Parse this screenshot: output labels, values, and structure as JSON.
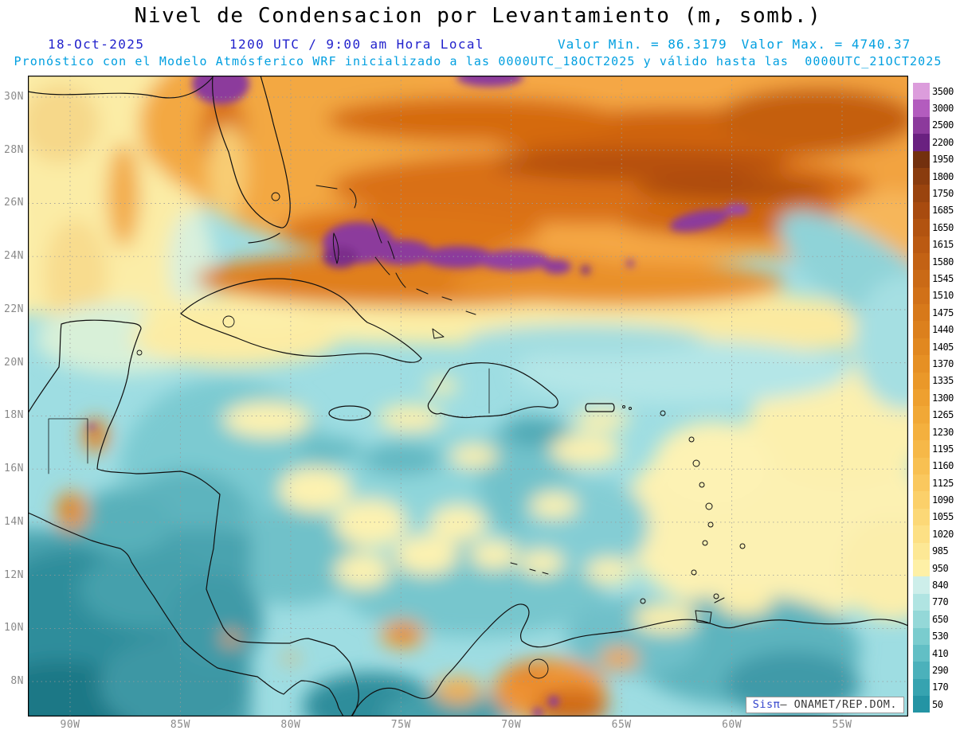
{
  "header": {
    "title": "Nivel de Condensacion por Levantamiento (m, somb.)",
    "date": "18-Oct-2025",
    "time": "1200 UTC / 9:00 am Hora Local",
    "value_min_text": "Valor Min. = 86.3179",
    "value_max_text": "Valor Max. = 4740.37",
    "model_info": "Pronóstico con el Modelo Atmósferico WRF inicializado a las 0000UTC_18OCT2025 y válido hasta las  0000UTC_21OCT2025"
  },
  "colors": {
    "header_blue": "#2222cc",
    "header_cyan": "#009fe0",
    "axis_gray": "#8a8a8a",
    "map_border": "#000000",
    "watermark_brand_blue": "#3344cc",
    "watermark_text_gray": "#3a3a3a"
  },
  "axes": {
    "lat_ticks": [
      "30N",
      "28N",
      "26N",
      "24N",
      "22N",
      "20N",
      "18N",
      "16N",
      "14N",
      "12N",
      "10N",
      "8N"
    ],
    "lon_ticks": [
      "90W",
      "85W",
      "80W",
      "75W",
      "70W",
      "65W",
      "60W",
      "55W"
    ]
  },
  "colorbar": {
    "entries": [
      {
        "label": "3500",
        "color": "#dc9ddc"
      },
      {
        "label": "3000",
        "color": "#b35cbe"
      },
      {
        "label": "2500",
        "color": "#8c3a9c"
      },
      {
        "label": "2200",
        "color": "#6a2180"
      },
      {
        "label": "1950",
        "color": "#73300e"
      },
      {
        "label": "1800",
        "color": "#8a3c0e"
      },
      {
        "label": "1750",
        "color": "#9a440e"
      },
      {
        "label": "1685",
        "color": "#a84b0f"
      },
      {
        "label": "1650",
        "color": "#b25310"
      },
      {
        "label": "1615",
        "color": "#bb5a12"
      },
      {
        "label": "1580",
        "color": "#c36214"
      },
      {
        "label": "1545",
        "color": "#ca6a16"
      },
      {
        "label": "1510",
        "color": "#d17118"
      },
      {
        "label": "1475",
        "color": "#d7791a"
      },
      {
        "label": "1440",
        "color": "#dc801d"
      },
      {
        "label": "1405",
        "color": "#e18820"
      },
      {
        "label": "1370",
        "color": "#e69024"
      },
      {
        "label": "1335",
        "color": "#ea9829"
      },
      {
        "label": "1300",
        "color": "#eea02f"
      },
      {
        "label": "1265",
        "color": "#f1a836"
      },
      {
        "label": "1230",
        "color": "#f4b03e"
      },
      {
        "label": "1195",
        "color": "#f6b848"
      },
      {
        "label": "1160",
        "color": "#f8c052"
      },
      {
        "label": "1125",
        "color": "#fac85e"
      },
      {
        "label": "1090",
        "color": "#fbd06a"
      },
      {
        "label": "1055",
        "color": "#fcd877"
      },
      {
        "label": "1020",
        "color": "#fde085"
      },
      {
        "label": "985",
        "color": "#fde895"
      },
      {
        "label": "950",
        "color": "#fef0a6"
      },
      {
        "label": "840",
        "color": "#cdeeea"
      },
      {
        "label": "770",
        "color": "#b0e4e2"
      },
      {
        "label": "650",
        "color": "#94d8d8"
      },
      {
        "label": "530",
        "color": "#7accce"
      },
      {
        "label": "410",
        "color": "#62bfc5"
      },
      {
        "label": "290",
        "color": "#4bb1bb"
      },
      {
        "label": "170",
        "color": "#36a3b0"
      },
      {
        "label": "50",
        "color": "#2494a4"
      }
    ]
  },
  "watermark": {
    "brand": "Sisπ",
    "separator": "– ",
    "agency": "ONAMET/REP.DOM."
  },
  "chart_data": {
    "type": "heatmap",
    "title": "Nivel de Condensacion por Levantamiento (m, somb.)",
    "model": "WRF",
    "date": "18-Oct-2025",
    "valid_at": "1200 UTC / 9:00 am Hora Local",
    "run": "0000UTC_18OCT2025",
    "valid_until": "0000UTC_21OCT2025",
    "units": "m",
    "value_min": 86.3179,
    "value_max": 4740.37,
    "lat_ticks_deg_n": [
      30,
      28,
      26,
      24,
      22,
      20,
      18,
      16,
      14,
      12,
      10,
      8
    ],
    "lon_ticks_deg_w": [
      90,
      85,
      80,
      75,
      70,
      65,
      60,
      55
    ],
    "extent_estimate": {
      "lon_deg_w": [
        92.2,
        52.1
      ],
      "lat_deg_n": [
        6.7,
        30.8
      ]
    },
    "levels_m": [
      3500,
      3000,
      2500,
      2200,
      1950,
      1800,
      1750,
      1685,
      1650,
      1615,
      1580,
      1545,
      1510,
      1475,
      1440,
      1405,
      1370,
      1335,
      1300,
      1265,
      1230,
      1195,
      1160,
      1125,
      1090,
      1055,
      1020,
      985,
      950,
      840,
      770,
      650,
      530,
      410,
      290,
      170,
      50
    ],
    "level_colors": [
      "#dc9ddc",
      "#b35cbe",
      "#8c3a9c",
      "#6a2180",
      "#73300e",
      "#8a3c0e",
      "#9a440e",
      "#a84b0f",
      "#b25310",
      "#bb5a12",
      "#c36214",
      "#ca6a16",
      "#d17118",
      "#d7791a",
      "#dc801d",
      "#e18820",
      "#e69024",
      "#ea9829",
      "#eea02f",
      "#f1a836",
      "#f4b03e",
      "#f6b848",
      "#f8c052",
      "#fac85e",
      "#fbd06a",
      "#fcd877",
      "#fde085",
      "#fde895",
      "#fef0a6",
      "#cdeeea",
      "#b0e4e2",
      "#94d8d8",
      "#7accce",
      "#62bfc5",
      "#4bb1bb",
      "#36a3b0",
      "#2494a4"
    ],
    "grid_estimate": {
      "lon_deg_w": [
        90,
        85,
        80,
        75,
        70,
        65,
        60,
        55
      ],
      "lat_deg_n": [
        30,
        28,
        26,
        24,
        22,
        20,
        18,
        16,
        14,
        12,
        10,
        8
      ],
      "values_m": [
        [
          950,
          1500,
          1800,
          1700,
          1900,
          1600,
          1500,
          1400
        ],
        [
          900,
          1100,
          1400,
          1700,
          1800,
          1700,
          1500,
          1200
        ],
        [
          950,
          900,
          1300,
          1600,
          1800,
          1800,
          1500,
          1000
        ],
        [
          800,
          850,
          1500,
          2000,
          1700,
          1400,
          1100,
          850
        ],
        [
          700,
          900,
          800,
          950,
          1000,
          950,
          850,
          950
        ],
        [
          600,
          1000,
          700,
          650,
          700,
          800,
          850,
          900
        ],
        [
          1200,
          650,
          750,
          600,
          650,
          900,
          950,
          1000
        ],
        [
          500,
          550,
          700,
          800,
          750,
          1000,
          1000,
          950
        ],
        [
          400,
          500,
          650,
          700,
          700,
          950,
          900,
          800
        ],
        [
          300,
          450,
          600,
          650,
          700,
          750,
          700,
          650
        ],
        [
          250,
          350,
          500,
          600,
          900,
          700,
          500,
          600
        ],
        [
          250,
          300,
          400,
          500,
          1400,
          800,
          400,
          500
        ]
      ]
    },
    "features": [
      "Máximo amplio de 1300–1950 m (naranjas) sobre el Atlántico subtropical al norte de 24N",
      "Núcleos >2200 m (púrpura) entre 24N y 25.5N cerca de Bahamas y el sur de Florida",
      "Banda de 950–1050 m (amarillo pálido) a lo largo de 22N–23N",
      "Valores de 400–800 m (cian) sobre el mar Caribe central",
      "Mínimos <300 m (verde azulado oscuro) en el Pacífico frente a Centroamérica",
      "Zona de 950–1100 m al este de las Antillas Menores (13N–17N)",
      "Máximos locales 1400–2500 m sobre el norte de Colombia y Venezuela (8N–10N)"
    ]
  }
}
